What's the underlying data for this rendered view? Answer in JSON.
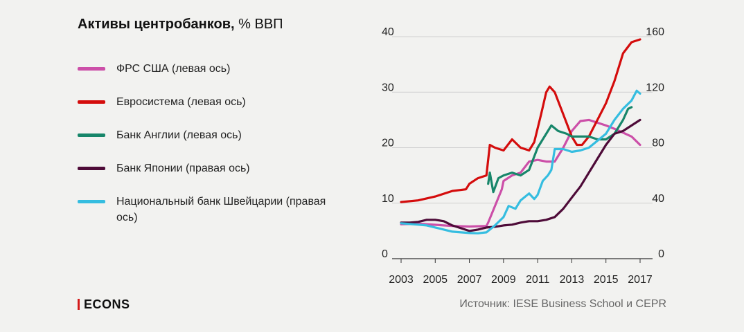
{
  "header": {
    "title_bold": "Активы центробанков,",
    "title_rest": " % ВВП"
  },
  "legend": [
    {
      "label": "ФРС США (левая ось)",
      "color": "#cc4fa8"
    },
    {
      "label": "Евросистема (левая ось)",
      "color": "#d40c0c"
    },
    {
      "label": "Банк Англии (левая ось)",
      "color": "#17866a"
    },
    {
      "label": "Банк Японии (правая ось)",
      "color": "#4e0b38"
    },
    {
      "label": "Национальный банк Швейцарии (правая ось)",
      "color": "#35bde0"
    }
  ],
  "footer": {
    "logo": "ECONS",
    "source": "Источник: IESE Business School и CEPR"
  },
  "chart_data": {
    "type": "line",
    "title": "Активы центробанков, % ВВП",
    "x_ticks": [
      "2003",
      "2005",
      "2007",
      "2009",
      "2011",
      "2013",
      "2015",
      "2017"
    ],
    "y_left": {
      "ticks": [
        "0",
        "10",
        "20",
        "30",
        "40"
      ],
      "range": [
        0,
        40
      ]
    },
    "y_right": {
      "ticks": [
        "0",
        "40",
        "80",
        "120",
        "160"
      ],
      "range": [
        0,
        160
      ]
    },
    "grid": true,
    "series": [
      {
        "name": "ФРС США (левая ось)",
        "axis": "left",
        "color": "#cc4fa8",
        "points": [
          [
            2003,
            6.2
          ],
          [
            2004,
            6.3
          ],
          [
            2005,
            6.1
          ],
          [
            2006,
            5.9
          ],
          [
            2007,
            5.8
          ],
          [
            2008,
            5.9
          ],
          [
            2008.1,
            6.5
          ],
          [
            2008.9,
            12.5
          ],
          [
            2009,
            14
          ],
          [
            2009.5,
            15
          ],
          [
            2010,
            15.5
          ],
          [
            2010.5,
            17.5
          ],
          [
            2011,
            17.8
          ],
          [
            2011.5,
            17.5
          ],
          [
            2012,
            17.5
          ],
          [
            2012.5,
            20
          ],
          [
            2013,
            23
          ],
          [
            2013.5,
            24.8
          ],
          [
            2014,
            25
          ],
          [
            2014.5,
            24.5
          ],
          [
            2015,
            24
          ],
          [
            2015.5,
            23.4
          ],
          [
            2016,
            22.7
          ],
          [
            2016.5,
            22
          ],
          [
            2017,
            20.5
          ]
        ]
      },
      {
        "name": "Евросистема (левая ось)",
        "axis": "left",
        "color": "#d40c0c",
        "points": [
          [
            2003,
            10.2
          ],
          [
            2004,
            10.5
          ],
          [
            2005,
            11.2
          ],
          [
            2006,
            12.2
          ],
          [
            2006.8,
            12.5
          ],
          [
            2007,
            13.5
          ],
          [
            2007.5,
            14.5
          ],
          [
            2008,
            15
          ],
          [
            2008.2,
            20.5
          ],
          [
            2008.5,
            20
          ],
          [
            2009,
            19.5
          ],
          [
            2009.5,
            21.5
          ],
          [
            2010,
            20
          ],
          [
            2010.5,
            19.5
          ],
          [
            2010.8,
            21
          ],
          [
            2011.2,
            26
          ],
          [
            2011.5,
            30
          ],
          [
            2011.7,
            31
          ],
          [
            2012,
            30
          ],
          [
            2012.5,
            26
          ],
          [
            2013,
            22
          ],
          [
            2013.3,
            20.5
          ],
          [
            2013.6,
            20.5
          ],
          [
            2014,
            22
          ],
          [
            2014.5,
            25
          ],
          [
            2015,
            28
          ],
          [
            2015.5,
            32
          ],
          [
            2016,
            37
          ],
          [
            2016.5,
            39
          ],
          [
            2017,
            39.5
          ]
        ]
      },
      {
        "name": "Банк Англии (левая ось)",
        "axis": "left",
        "color": "#17866a",
        "points": [
          [
            2008.1,
            13.5
          ],
          [
            2008.2,
            15.5
          ],
          [
            2008.4,
            12
          ],
          [
            2008.7,
            14.5
          ],
          [
            2009,
            15
          ],
          [
            2009.5,
            15.5
          ],
          [
            2010,
            15
          ],
          [
            2010.5,
            16
          ],
          [
            2011,
            20
          ],
          [
            2011.5,
            22.5
          ],
          [
            2011.8,
            24
          ],
          [
            2012.2,
            23
          ],
          [
            2012.7,
            22.5
          ],
          [
            2013,
            22
          ],
          [
            2013.5,
            22
          ],
          [
            2014,
            22
          ],
          [
            2014.5,
            21.5
          ],
          [
            2015,
            21.5
          ],
          [
            2015.5,
            22.5
          ],
          [
            2016,
            25
          ],
          [
            2016.3,
            27
          ],
          [
            2016.5,
            27.3
          ]
        ]
      },
      {
        "name": "Банк Японии (правая ось)",
        "axis": "right",
        "color": "#4e0b38",
        "points": [
          [
            2003,
            26
          ],
          [
            2003.5,
            26
          ],
          [
            2004,
            26.5
          ],
          [
            2004.5,
            28
          ],
          [
            2005,
            28
          ],
          [
            2005.5,
            27
          ],
          [
            2006,
            24
          ],
          [
            2006.5,
            22
          ],
          [
            2007,
            20
          ],
          [
            2007.5,
            21
          ],
          [
            2008,
            22.5
          ],
          [
            2008.5,
            23
          ],
          [
            2009,
            24
          ],
          [
            2009.5,
            24.5
          ],
          [
            2010,
            26
          ],
          [
            2010.5,
            27
          ],
          [
            2011,
            27
          ],
          [
            2011.5,
            28
          ],
          [
            2012,
            30
          ],
          [
            2012.5,
            36
          ],
          [
            2013,
            44
          ],
          [
            2013.5,
            52
          ],
          [
            2014,
            62
          ],
          [
            2014.5,
            72
          ],
          [
            2015,
            82
          ],
          [
            2015.5,
            90
          ],
          [
            2016,
            92
          ],
          [
            2016.5,
            96
          ],
          [
            2017,
            100
          ]
        ]
      },
      {
        "name": "Национальный банк Швейцарии (правая ось)",
        "axis": "right",
        "color": "#35bde0",
        "points": [
          [
            2003,
            25.5
          ],
          [
            2004,
            24.5
          ],
          [
            2004.5,
            24
          ],
          [
            2005,
            22.5
          ],
          [
            2005.5,
            21
          ],
          [
            2006,
            19.5
          ],
          [
            2006.5,
            19
          ],
          [
            2007,
            18.5
          ],
          [
            2007.5,
            18.3
          ],
          [
            2008,
            19
          ],
          [
            2008.5,
            24
          ],
          [
            2009,
            30
          ],
          [
            2009.3,
            38
          ],
          [
            2009.7,
            36
          ],
          [
            2010,
            42
          ],
          [
            2010.5,
            47
          ],
          [
            2010.8,
            43
          ],
          [
            2011,
            46
          ],
          [
            2011.3,
            56
          ],
          [
            2011.6,
            60
          ],
          [
            2011.8,
            64
          ],
          [
            2012,
            79
          ],
          [
            2012.5,
            79
          ],
          [
            2013,
            77
          ],
          [
            2013.5,
            78
          ],
          [
            2014,
            80
          ],
          [
            2014.5,
            85
          ],
          [
            2015,
            90
          ],
          [
            2015.5,
            100
          ],
          [
            2016,
            108
          ],
          [
            2016.5,
            114
          ],
          [
            2016.8,
            121
          ],
          [
            2017,
            119
          ]
        ]
      }
    ]
  }
}
